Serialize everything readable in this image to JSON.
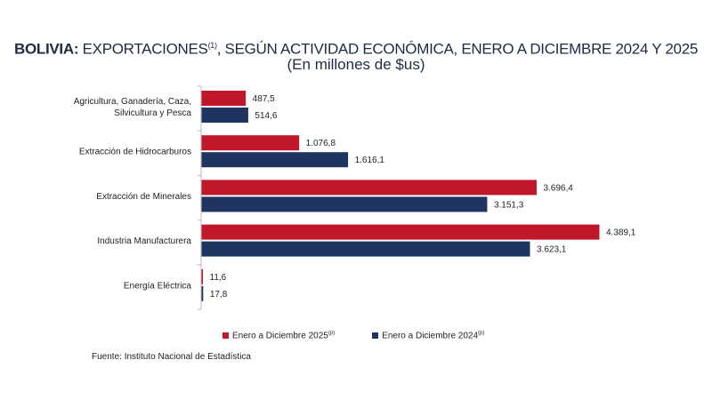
{
  "chart_data": {
    "type": "bar",
    "orientation": "horizontal",
    "title_bold": "BOLIVIA:",
    "title_rest": " EXPORTACIONES",
    "title_sup": "(1)",
    "title_tail": ", SEGÚN ACTIVIDAD ECONÓMICA, ENERO A DICIEMBRE 2024 Y 2025",
    "subtitle": "(En millones de $us)",
    "categories": [
      [
        "Agricultura, Ganadería, Caza,",
        "Silvicultura y Pesca"
      ],
      [
        "Extracción de Hidrocarburos"
      ],
      [
        "Extracción de Minerales"
      ],
      [
        "Industria Manufacturera"
      ],
      [
        "Energía Eléctrica"
      ]
    ],
    "series": [
      {
        "name": "Enero a Diciembre  2025",
        "sup": "(p)",
        "color": "#c0182a",
        "values": [
          487.5,
          1076.8,
          3696.4,
          4389.1,
          11.6
        ],
        "labels": [
          "487,5",
          "1.076,8",
          "3.696,4",
          "4.389,1",
          "11,6"
        ]
      },
      {
        "name": "Enero a Diciembre 2024",
        "sup": "(p)",
        "color": "#1f3461",
        "values": [
          514.6,
          1616.1,
          3151.3,
          3623.1,
          17.8
        ],
        "labels": [
          "514,6",
          "1.616,1",
          "3.151,3",
          "3.623,1",
          "17,8"
        ]
      }
    ],
    "xlim": [
      0,
      4389.1
    ],
    "grid": false,
    "legend_position": "bottom"
  },
  "source": "Fuente: Instituto Nacional de Estadística"
}
